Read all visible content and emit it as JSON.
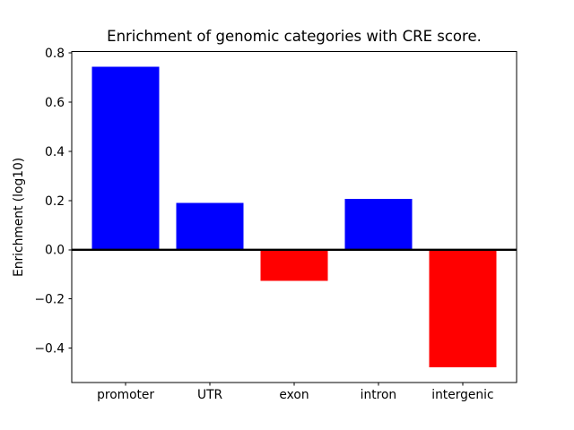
{
  "chart_data": {
    "type": "bar",
    "title": "Enrichment of genomic categories with CRE score.",
    "ylabel": "Enrichment (log10)",
    "xlabel": "",
    "categories": [
      "promoter",
      "UTR",
      "exon",
      "intron",
      "intergenic"
    ],
    "values": [
      0.745,
      0.19,
      -0.127,
      0.207,
      -0.479
    ],
    "bar_colors": [
      "#0000ff",
      "#0000ff",
      "#ff0000",
      "#0000ff",
      "#ff0000"
    ],
    "positive_color": "#0000ff",
    "negative_color": "#ff0000",
    "yticks": [
      0.8,
      0.6,
      0.4,
      0.2,
      0.0,
      -0.2,
      -0.4
    ],
    "ytick_labels": [
      "0.8",
      "0.6",
      "0.4",
      "0.2",
      "0.0",
      "−0.2",
      "−0.4"
    ],
    "ylim": [
      -0.541,
      0.806
    ],
    "xlim": [
      -0.64,
      4.64
    ],
    "bar_width": 0.8,
    "zero_line": true,
    "grid": false,
    "legend": "none",
    "background": "#ffffff",
    "axis_color": "#000000"
  }
}
